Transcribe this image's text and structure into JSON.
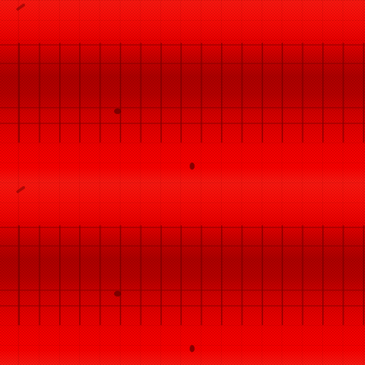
{
  "texture": {
    "base_color": "#ff0000",
    "dark_band_color": "#b30000",
    "light_band_color": "#ff1a12",
    "repeats_vertically": 2
  }
}
